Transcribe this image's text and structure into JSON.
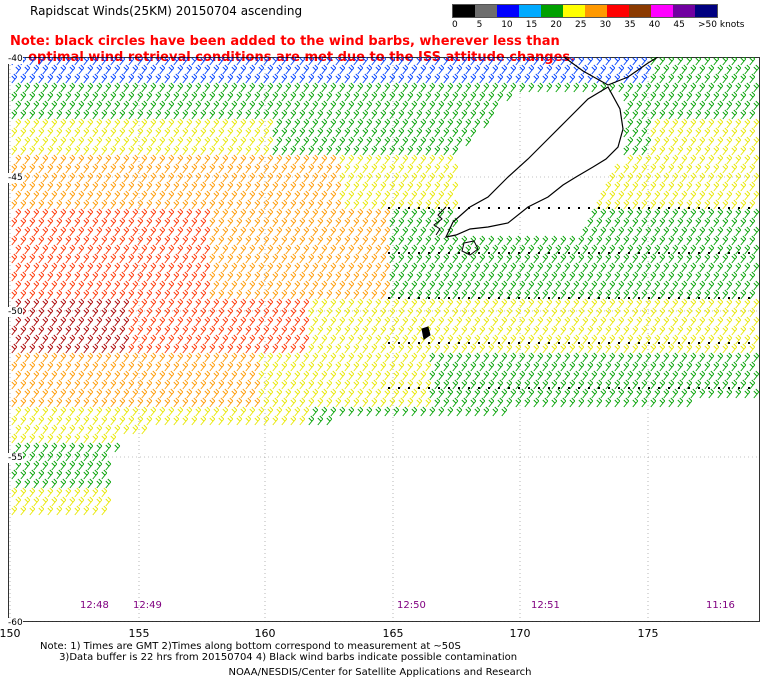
{
  "header": {
    "title": "Rapidscat Winds(25KM) 20150704 ascending",
    "note_line1": "Note: black circles have been added to the wind barbs, wherever less than",
    "note_line2": "    optimal wind retrieval conditions are met due to the ISS attitude changes."
  },
  "legend": {
    "labels": [
      "0",
      "5",
      "10",
      "15",
      "20",
      "25",
      "30",
      "35",
      "40",
      "45",
      ">50 knots"
    ],
    "colors": [
      "#000000",
      "#6d6d6d",
      "#0000ff",
      "#00aaff",
      "#00a000",
      "#ffff00",
      "#ff9900",
      "#ff0000",
      "#8b3a00",
      "#ff00ff",
      "#7000a0",
      "#000080"
    ]
  },
  "map": {
    "lat_labels": [
      "-40",
      "-45",
      "-50",
      "-55",
      "-60"
    ],
    "lon_labels": [
      "150",
      "155",
      "160",
      "165",
      "170",
      "175"
    ],
    "time_labels": [
      "12:48",
      "12:49",
      "12:50",
      "12:51",
      "11:16"
    ],
    "wind_speed_colors": {
      "calm": "#00ccff",
      "low": "#0040ff",
      "moderate": "#00a000",
      "fresh": "#e8e800",
      "strong": "#ff9900",
      "gale": "#ff3300",
      "storm": "#aa0000"
    },
    "land_color": "#000000"
  },
  "footer": {
    "line1": "Note: 1) Times are GMT 2)Times along bottom correspond to measurement at ~50S",
    "line2": "      3)Data buffer is 22 hrs from 20150704 4) Black wind barbs indicate possible contamination",
    "credit": "NOAA/NESDIS/Center for Satellite Applications and Research"
  }
}
